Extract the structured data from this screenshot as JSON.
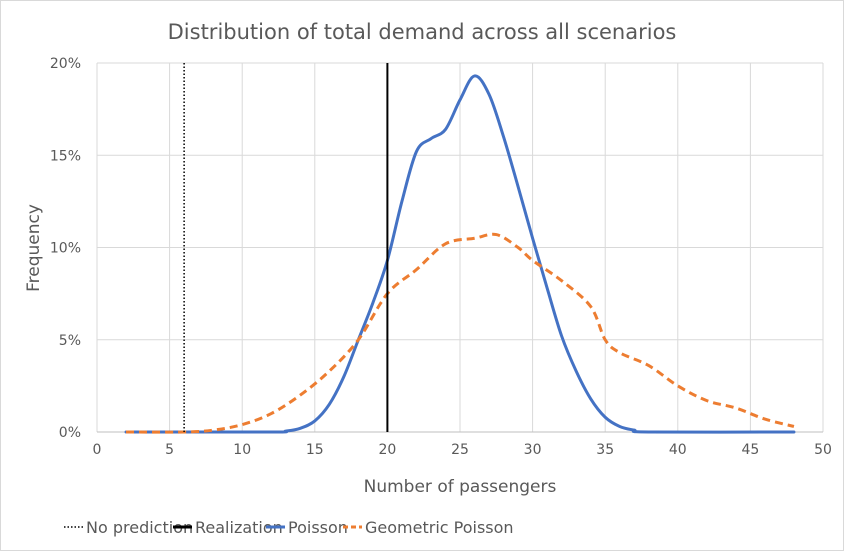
{
  "chart_data": {
    "type": "line",
    "title": "Distribution of total demand across all scenarios",
    "xlabel": "Number of passengers",
    "ylabel": "Frequency",
    "xlim": [
      0,
      50
    ],
    "ylim": [
      0,
      20
    ],
    "xticks": [
      0,
      5,
      10,
      15,
      20,
      25,
      30,
      35,
      40,
      45,
      50
    ],
    "yticks": [
      0,
      5,
      10,
      15,
      20
    ],
    "ytick_labels": [
      "0%",
      "5%",
      "10%",
      "15%",
      "20%"
    ],
    "grid": true,
    "legend_position": "bottom",
    "vlines": [
      {
        "name": "No prediction",
        "x": 6,
        "color": "#000000",
        "style": "dotted"
      },
      {
        "name": "Realization",
        "x": 20,
        "color": "#000000",
        "style": "solid"
      }
    ],
    "series": [
      {
        "name": "Poisson",
        "color": "#4472C4",
        "style": "solid",
        "x": [
          2,
          12,
          13,
          14,
          15,
          16,
          17,
          18,
          19,
          20,
          21,
          22,
          23,
          24,
          25,
          26,
          27,
          28,
          29,
          30,
          31,
          32,
          33,
          34,
          35,
          36,
          37,
          38,
          48
        ],
        "y": [
          0,
          0,
          0.05,
          0.2,
          0.6,
          1.5,
          3.0,
          5.0,
          7.0,
          9.3,
          12.5,
          15.2,
          15.9,
          16.4,
          18.0,
          19.3,
          18.3,
          16.0,
          13.3,
          10.5,
          7.8,
          5.2,
          3.3,
          1.8,
          0.8,
          0.3,
          0.1,
          0,
          0
        ]
      },
      {
        "name": "Geometric Poisson",
        "color": "#ED7D31",
        "style": "dashed",
        "x": [
          2,
          6,
          8,
          10,
          12,
          14,
          16,
          18,
          20,
          22,
          24,
          26,
          27.5,
          29,
          30,
          32,
          34,
          35,
          36,
          38,
          40,
          42,
          44,
          46,
          48
        ],
        "y": [
          0,
          0,
          0.1,
          0.4,
          1.0,
          2.0,
          3.3,
          5.0,
          7.5,
          8.8,
          10.2,
          10.5,
          10.7,
          10.0,
          9.3,
          8.2,
          6.8,
          5.0,
          4.3,
          3.6,
          2.5,
          1.7,
          1.3,
          0.7,
          0.3
        ]
      }
    ]
  }
}
